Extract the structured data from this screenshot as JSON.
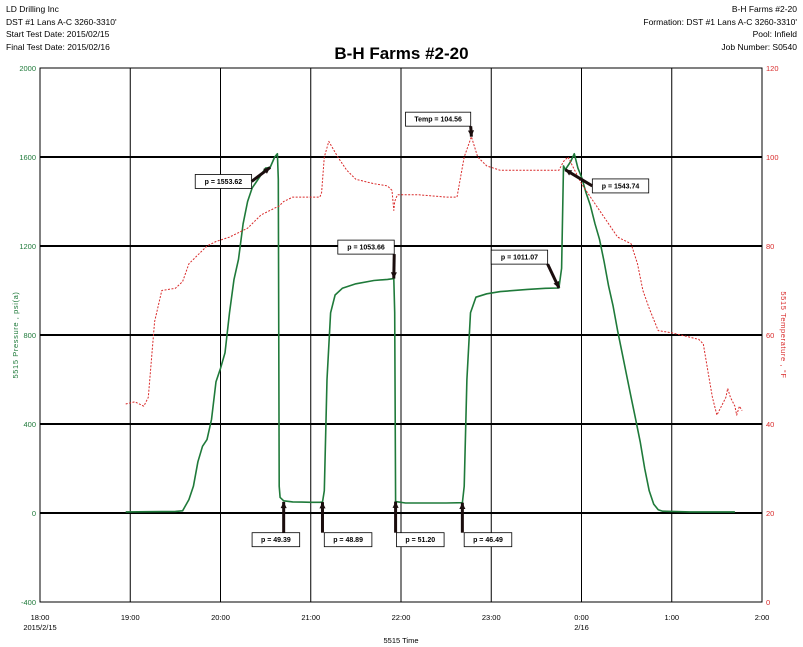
{
  "header": {
    "left": [
      "LD Drilling Inc",
      "DST #1  Lans A-C  3260-3310'",
      "Start Test Date: 2015/02/15",
      "Final Test Date: 2015/02/16"
    ],
    "right": [
      "B-H Farms #2-20",
      "Formation: DST #1  Lans A-C  3260-3310'",
      "Pool: Infield",
      "Job Number: S0540"
    ]
  },
  "chart_data": {
    "type": "line",
    "title": "B-H Farms #2-20",
    "xlabel": "5515 Time",
    "ylabel": "5515 Pressure , psi(a)",
    "y2label": "5515 Temperature , °F",
    "xlim": [
      18.0,
      26.0
    ],
    "ylim": [
      -400,
      2000
    ],
    "y2lim": [
      0,
      120
    ],
    "x_ticks": [
      18,
      19,
      20,
      21,
      22,
      23,
      24,
      25,
      26
    ],
    "x_tick_labels": [
      "18:00",
      "19:00",
      "20:00",
      "21:00",
      "22:00",
      "23:00",
      "0:00",
      "1:00",
      "2:00"
    ],
    "x_date_labels": [
      {
        "x": 18,
        "text": "2015/2/15"
      },
      {
        "x": 24,
        "text": "2/16"
      }
    ],
    "y_ticks": [
      -400,
      0,
      400,
      800,
      1200,
      1600,
      2000
    ],
    "y2_ticks": [
      0,
      20,
      40,
      60,
      80,
      100,
      120
    ],
    "grid": true,
    "colors": {
      "pressure": "#1f7a3a",
      "temperature": "#d92b2b",
      "grid": "#000000"
    },
    "series": [
      {
        "axis": "left",
        "color": "#1f7a3a",
        "points": [
          [
            18.95,
            5
          ],
          [
            19.2,
            6
          ],
          [
            19.5,
            7
          ],
          [
            19.58,
            10
          ],
          [
            19.65,
            60
          ],
          [
            19.7,
            120
          ],
          [
            19.75,
            230
          ],
          [
            19.8,
            300
          ],
          [
            19.85,
            330
          ],
          [
            19.9,
            420
          ],
          [
            19.95,
            590
          ],
          [
            20.0,
            650
          ],
          [
            20.05,
            720
          ],
          [
            20.1,
            900
          ],
          [
            20.15,
            1050
          ],
          [
            20.2,
            1140
          ],
          [
            20.25,
            1300
          ],
          [
            20.3,
            1400
          ],
          [
            20.35,
            1460
          ],
          [
            20.4,
            1490
          ],
          [
            20.45,
            1520
          ],
          [
            20.5,
            1550
          ],
          [
            20.55,
            1553
          ],
          [
            20.6,
            1600
          ],
          [
            20.63,
            1615
          ],
          [
            20.64,
            1500
          ],
          [
            20.65,
            120
          ],
          [
            20.66,
            70
          ],
          [
            20.7,
            55
          ],
          [
            20.8,
            50
          ],
          [
            20.9,
            49
          ],
          [
            21.0,
            48
          ],
          [
            21.1,
            48
          ],
          [
            21.13,
            48.89
          ],
          [
            21.15,
            100
          ],
          [
            21.18,
            600
          ],
          [
            21.22,
            900
          ],
          [
            21.27,
            980
          ],
          [
            21.35,
            1010
          ],
          [
            21.5,
            1030
          ],
          [
            21.7,
            1045
          ],
          [
            21.85,
            1050
          ],
          [
            21.92,
            1053.66
          ],
          [
            21.93,
            900
          ],
          [
            21.94,
            51.2
          ],
          [
            22.05,
            45
          ],
          [
            22.3,
            45
          ],
          [
            22.5,
            45
          ],
          [
            22.68,
            46.49
          ],
          [
            22.7,
            120
          ],
          [
            22.73,
            600
          ],
          [
            22.77,
            900
          ],
          [
            22.83,
            970
          ],
          [
            22.95,
            985
          ],
          [
            23.1,
            995
          ],
          [
            23.4,
            1005
          ],
          [
            23.6,
            1010
          ],
          [
            23.75,
            1011.07
          ],
          [
            23.78,
            1100
          ],
          [
            23.8,
            1560
          ],
          [
            23.82,
            1543
          ],
          [
            23.88,
            1580
          ],
          [
            23.92,
            1615
          ],
          [
            23.96,
            1550
          ],
          [
            24.0,
            1510
          ],
          [
            24.05,
            1440
          ],
          [
            24.1,
            1380
          ],
          [
            24.15,
            1300
          ],
          [
            24.2,
            1230
          ],
          [
            24.25,
            1130
          ],
          [
            24.3,
            1020
          ],
          [
            24.35,
            930
          ],
          [
            24.4,
            820
          ],
          [
            24.45,
            720
          ],
          [
            24.5,
            620
          ],
          [
            24.55,
            520
          ],
          [
            24.6,
            420
          ],
          [
            24.65,
            320
          ],
          [
            24.7,
            200
          ],
          [
            24.75,
            100
          ],
          [
            24.8,
            40
          ],
          [
            24.85,
            15
          ],
          [
            24.9,
            8
          ],
          [
            25.2,
            5
          ],
          [
            25.6,
            5
          ],
          [
            25.7,
            5
          ]
        ]
      },
      {
        "axis": "right",
        "color": "#d92b2b",
        "points": [
          [
            18.95,
            44.5
          ],
          [
            19.05,
            45
          ],
          [
            19.15,
            44
          ],
          [
            19.2,
            46
          ],
          [
            19.27,
            63
          ],
          [
            19.35,
            70
          ],
          [
            19.5,
            70.5
          ],
          [
            19.58,
            72
          ],
          [
            19.65,
            76
          ],
          [
            19.75,
            78
          ],
          [
            19.85,
            80
          ],
          [
            19.95,
            81
          ],
          [
            20.1,
            82
          ],
          [
            20.3,
            84
          ],
          [
            20.45,
            87
          ],
          [
            20.55,
            88
          ],
          [
            20.65,
            89
          ],
          [
            20.7,
            90
          ],
          [
            20.8,
            91
          ],
          [
            21.1,
            91
          ],
          [
            21.12,
            92
          ],
          [
            21.15,
            100
          ],
          [
            21.2,
            103.5
          ],
          [
            21.3,
            100
          ],
          [
            21.4,
            97
          ],
          [
            21.5,
            95
          ],
          [
            21.7,
            94
          ],
          [
            21.85,
            93.5
          ],
          [
            21.9,
            92.5
          ],
          [
            21.92,
            88
          ],
          [
            21.93,
            90
          ],
          [
            21.96,
            91.5
          ],
          [
            22.2,
            91.5
          ],
          [
            22.5,
            91
          ],
          [
            22.62,
            91
          ],
          [
            22.7,
            100
          ],
          [
            22.78,
            104.56
          ],
          [
            22.85,
            100
          ],
          [
            22.95,
            98
          ],
          [
            23.1,
            97
          ],
          [
            23.5,
            97
          ],
          [
            23.75,
            97
          ],
          [
            23.8,
            99
          ],
          [
            23.85,
            100
          ],
          [
            23.9,
            98
          ],
          [
            24.0,
            94
          ],
          [
            24.1,
            91
          ],
          [
            24.2,
            88
          ],
          [
            24.3,
            85
          ],
          [
            24.4,
            82
          ],
          [
            24.5,
            81
          ],
          [
            24.55,
            80.5
          ],
          [
            24.62,
            76
          ],
          [
            24.68,
            70
          ],
          [
            24.75,
            66
          ],
          [
            24.85,
            61
          ],
          [
            25.0,
            60.5
          ],
          [
            25.1,
            60
          ],
          [
            25.3,
            59
          ],
          [
            25.35,
            58
          ],
          [
            25.4,
            52
          ],
          [
            25.45,
            46
          ],
          [
            25.5,
            42
          ],
          [
            25.55,
            44
          ],
          [
            25.6,
            46
          ],
          [
            25.62,
            48
          ],
          [
            25.65,
            46
          ],
          [
            25.7,
            44
          ],
          [
            25.72,
            42
          ],
          [
            25.75,
            44
          ],
          [
            25.78,
            43
          ]
        ]
      }
    ],
    "annotations": [
      {
        "text": "p = 1553.62",
        "x": 20.55,
        "y": 1553,
        "axis": "left",
        "box_x": 19.72,
        "box_y": 1490,
        "arrow": "right"
      },
      {
        "text": "p = 49.39",
        "x": 20.7,
        "y": 50,
        "axis": "left",
        "box_x": 20.35,
        "box_y": -120,
        "arrow": "up"
      },
      {
        "text": "p = 48.89",
        "x": 21.13,
        "y": 48.89,
        "axis": "left",
        "box_x": 21.15,
        "box_y": -120,
        "arrow": "up"
      },
      {
        "text": "p = 1053.66",
        "x": 21.92,
        "y": 1053.66,
        "axis": "left",
        "box_x": 21.3,
        "box_y": 1195,
        "arrow": "downright"
      },
      {
        "text": "p = 51.20",
        "x": 21.94,
        "y": 51.2,
        "axis": "left",
        "box_x": 21.95,
        "box_y": -120,
        "arrow": "up"
      },
      {
        "text": "p = 46.49",
        "x": 22.68,
        "y": 46.49,
        "axis": "left",
        "box_x": 22.7,
        "box_y": -120,
        "arrow": "up"
      },
      {
        "text": "p = 1011.07",
        "x": 23.75,
        "y": 1011.07,
        "axis": "left",
        "box_x": 23.0,
        "box_y": 1150,
        "arrow": "downright"
      },
      {
        "text": "p = 1543.74",
        "x": 23.82,
        "y": 1543,
        "axis": "left",
        "box_x": 24.12,
        "box_y": 1470,
        "arrow": "left"
      },
      {
        "text": "Temp = 104.56",
        "x": 22.78,
        "y": 104.56,
        "axis": "right",
        "box_x": 22.05,
        "box_y": 1770,
        "arrow": "downright"
      }
    ]
  }
}
